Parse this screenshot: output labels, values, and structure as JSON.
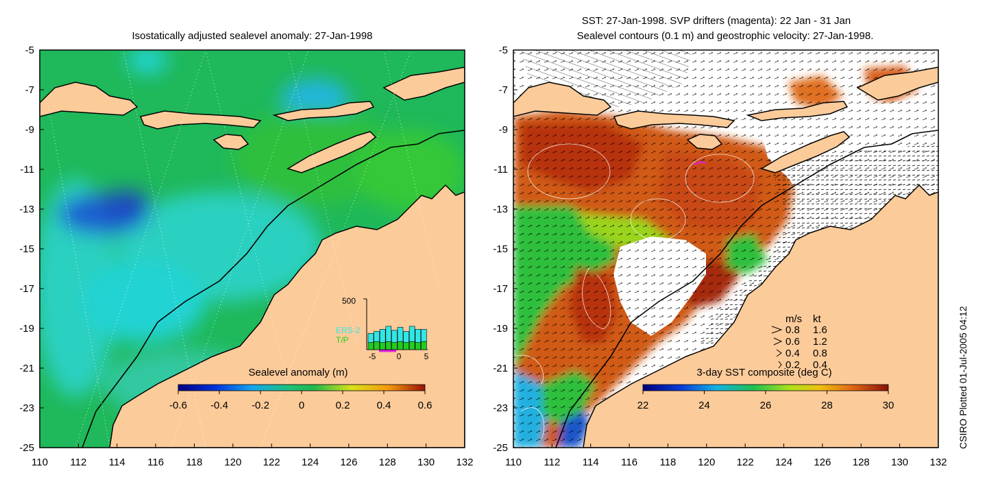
{
  "left_panel": {
    "title": "Isostatically adjusted sealevel anomaly: 27-Jan-1998",
    "lat_labels": [
      "-5",
      "-7",
      "-9",
      "-11",
      "-13",
      "-15",
      "-17",
      "-19",
      "-21",
      "-23",
      "-25"
    ],
    "lon_labels": [
      "110",
      "112",
      "114",
      "116",
      "118",
      "120",
      "122",
      "124",
      "126",
      "128",
      "130",
      "132"
    ],
    "colorbar": {
      "title": "Sealevel anomaly (m)",
      "ticks": [
        "-0.6",
        "-0.4",
        "-0.2",
        "0",
        "0.2",
        "0.4",
        "0.6"
      ]
    },
    "inset": {
      "ymax_label": "500",
      "series": [
        "ERS-2",
        "T/P"
      ],
      "xticks": [
        "-5",
        "0",
        "5"
      ],
      "colors": {
        "ers2": "#33e6e6",
        "tp": "#22cc22"
      }
    }
  },
  "right_panel": {
    "title_line1": "SST: 27-Jan-1998. SVP drifters (magenta): 22 Jan - 31 Jan",
    "title_line2": "Sealevel contours (0.1 m) and geostrophic velocity: 27-Jan-1998.",
    "lat_labels": [
      "-5",
      "-7",
      "-9",
      "-11",
      "-13",
      "-15",
      "-17",
      "-19",
      "-21",
      "-23",
      "-25"
    ],
    "lon_labels": [
      "110",
      "112",
      "114",
      "116",
      "118",
      "120",
      "122",
      "124",
      "126",
      "128",
      "130",
      "132"
    ],
    "colorbar": {
      "title": "3-day SST composite (deg C)",
      "ticks": [
        "22",
        "24",
        "26",
        "28",
        "30"
      ]
    },
    "velocity_legend": {
      "header_ms": "m/s",
      "header_kt": "kt",
      "rows": [
        {
          "ms": "0.8",
          "kt": "1.6"
        },
        {
          "ms": "0.6",
          "kt": "1.2"
        },
        {
          "ms": "0.4",
          "kt": "0.8"
        },
        {
          "ms": "0.2",
          "kt": "0.4"
        }
      ]
    }
  },
  "credit": "CSIRO Plotted 01-Jul-2005 04:12",
  "colors": {
    "land": "#fccb9a",
    "ocean_green": "#1fb85a",
    "ocean_cyan": "#22d3d3",
    "anomaly_low": "#1e5fd0",
    "sst_warm": "#c8501c",
    "sst_hot": "#8c1a0a"
  }
}
